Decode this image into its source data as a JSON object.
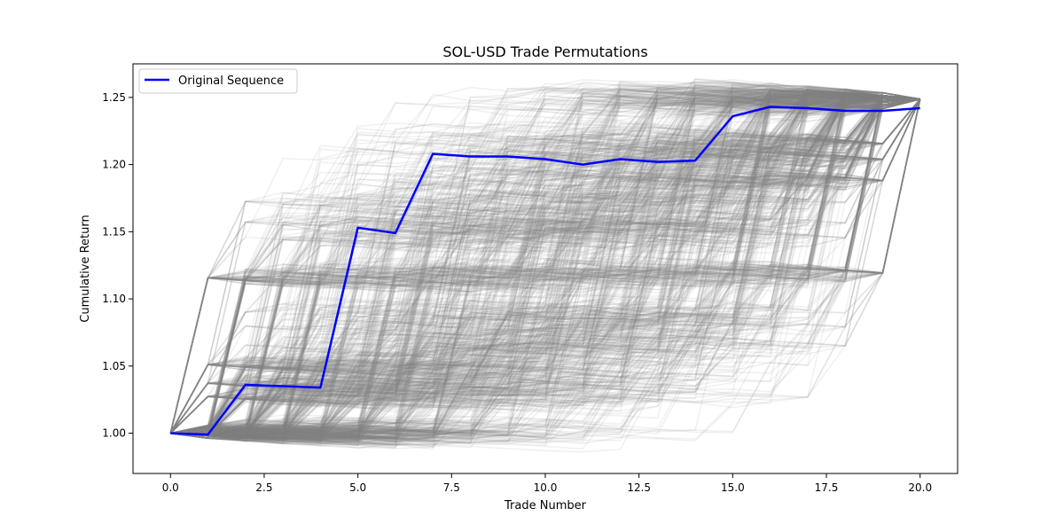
{
  "chart_data": {
    "type": "line",
    "title": "SOL-USD Trade Permutations",
    "xlabel": "Trade Number",
    "ylabel": "Cumulative Return",
    "xlim": [
      -1.0,
      21.0
    ],
    "ylim": [
      0.97,
      1.275
    ],
    "x_ticks": [
      0.0,
      2.5,
      5.0,
      7.5,
      10.0,
      12.5,
      15.0,
      17.5,
      20.0
    ],
    "x_tick_labels": [
      "0.0",
      "2.5",
      "5.0",
      "7.5",
      "10.0",
      "12.5",
      "15.0",
      "17.5",
      "20.0"
    ],
    "y_ticks": [
      1.0,
      1.05,
      1.1,
      1.15,
      1.2,
      1.25
    ],
    "y_tick_labels": [
      "1.00",
      "1.05",
      "1.10",
      "1.15",
      "1.20",
      "1.25"
    ],
    "grid": false,
    "legend_position": "top-left",
    "legend": [
      {
        "label": "Original Sequence",
        "color": "#0000ff"
      }
    ],
    "trade_returns": [
      -0.0009,
      0.0372,
      -0.0019,
      0.1156,
      -0.0038,
      0.051,
      -0.0018,
      0.0,
      -0.0017,
      -0.0022,
      0.0033,
      -0.0016,
      0.0011,
      0.0273,
      0.0057,
      -0.0009,
      -0.0018,
      -0.0003,
      0.002,
      0.0044
    ],
    "series": [
      {
        "name": "Original Sequence",
        "color": "#0000ff",
        "x": [
          0,
          1,
          2,
          3,
          4,
          5,
          6,
          7,
          8,
          9,
          10,
          11,
          12,
          13,
          14,
          15,
          16,
          17,
          18,
          19,
          20
        ],
        "values": [
          1.0,
          0.999,
          1.036,
          1.035,
          1.034,
          1.153,
          1.149,
          1.208,
          1.206,
          1.206,
          1.204,
          1.2,
          1.204,
          1.202,
          1.203,
          1.236,
          1.243,
          1.242,
          1.24,
          1.24,
          1.242
        ]
      }
    ],
    "permutations": {
      "color": "#808080",
      "count": 1000
    }
  }
}
